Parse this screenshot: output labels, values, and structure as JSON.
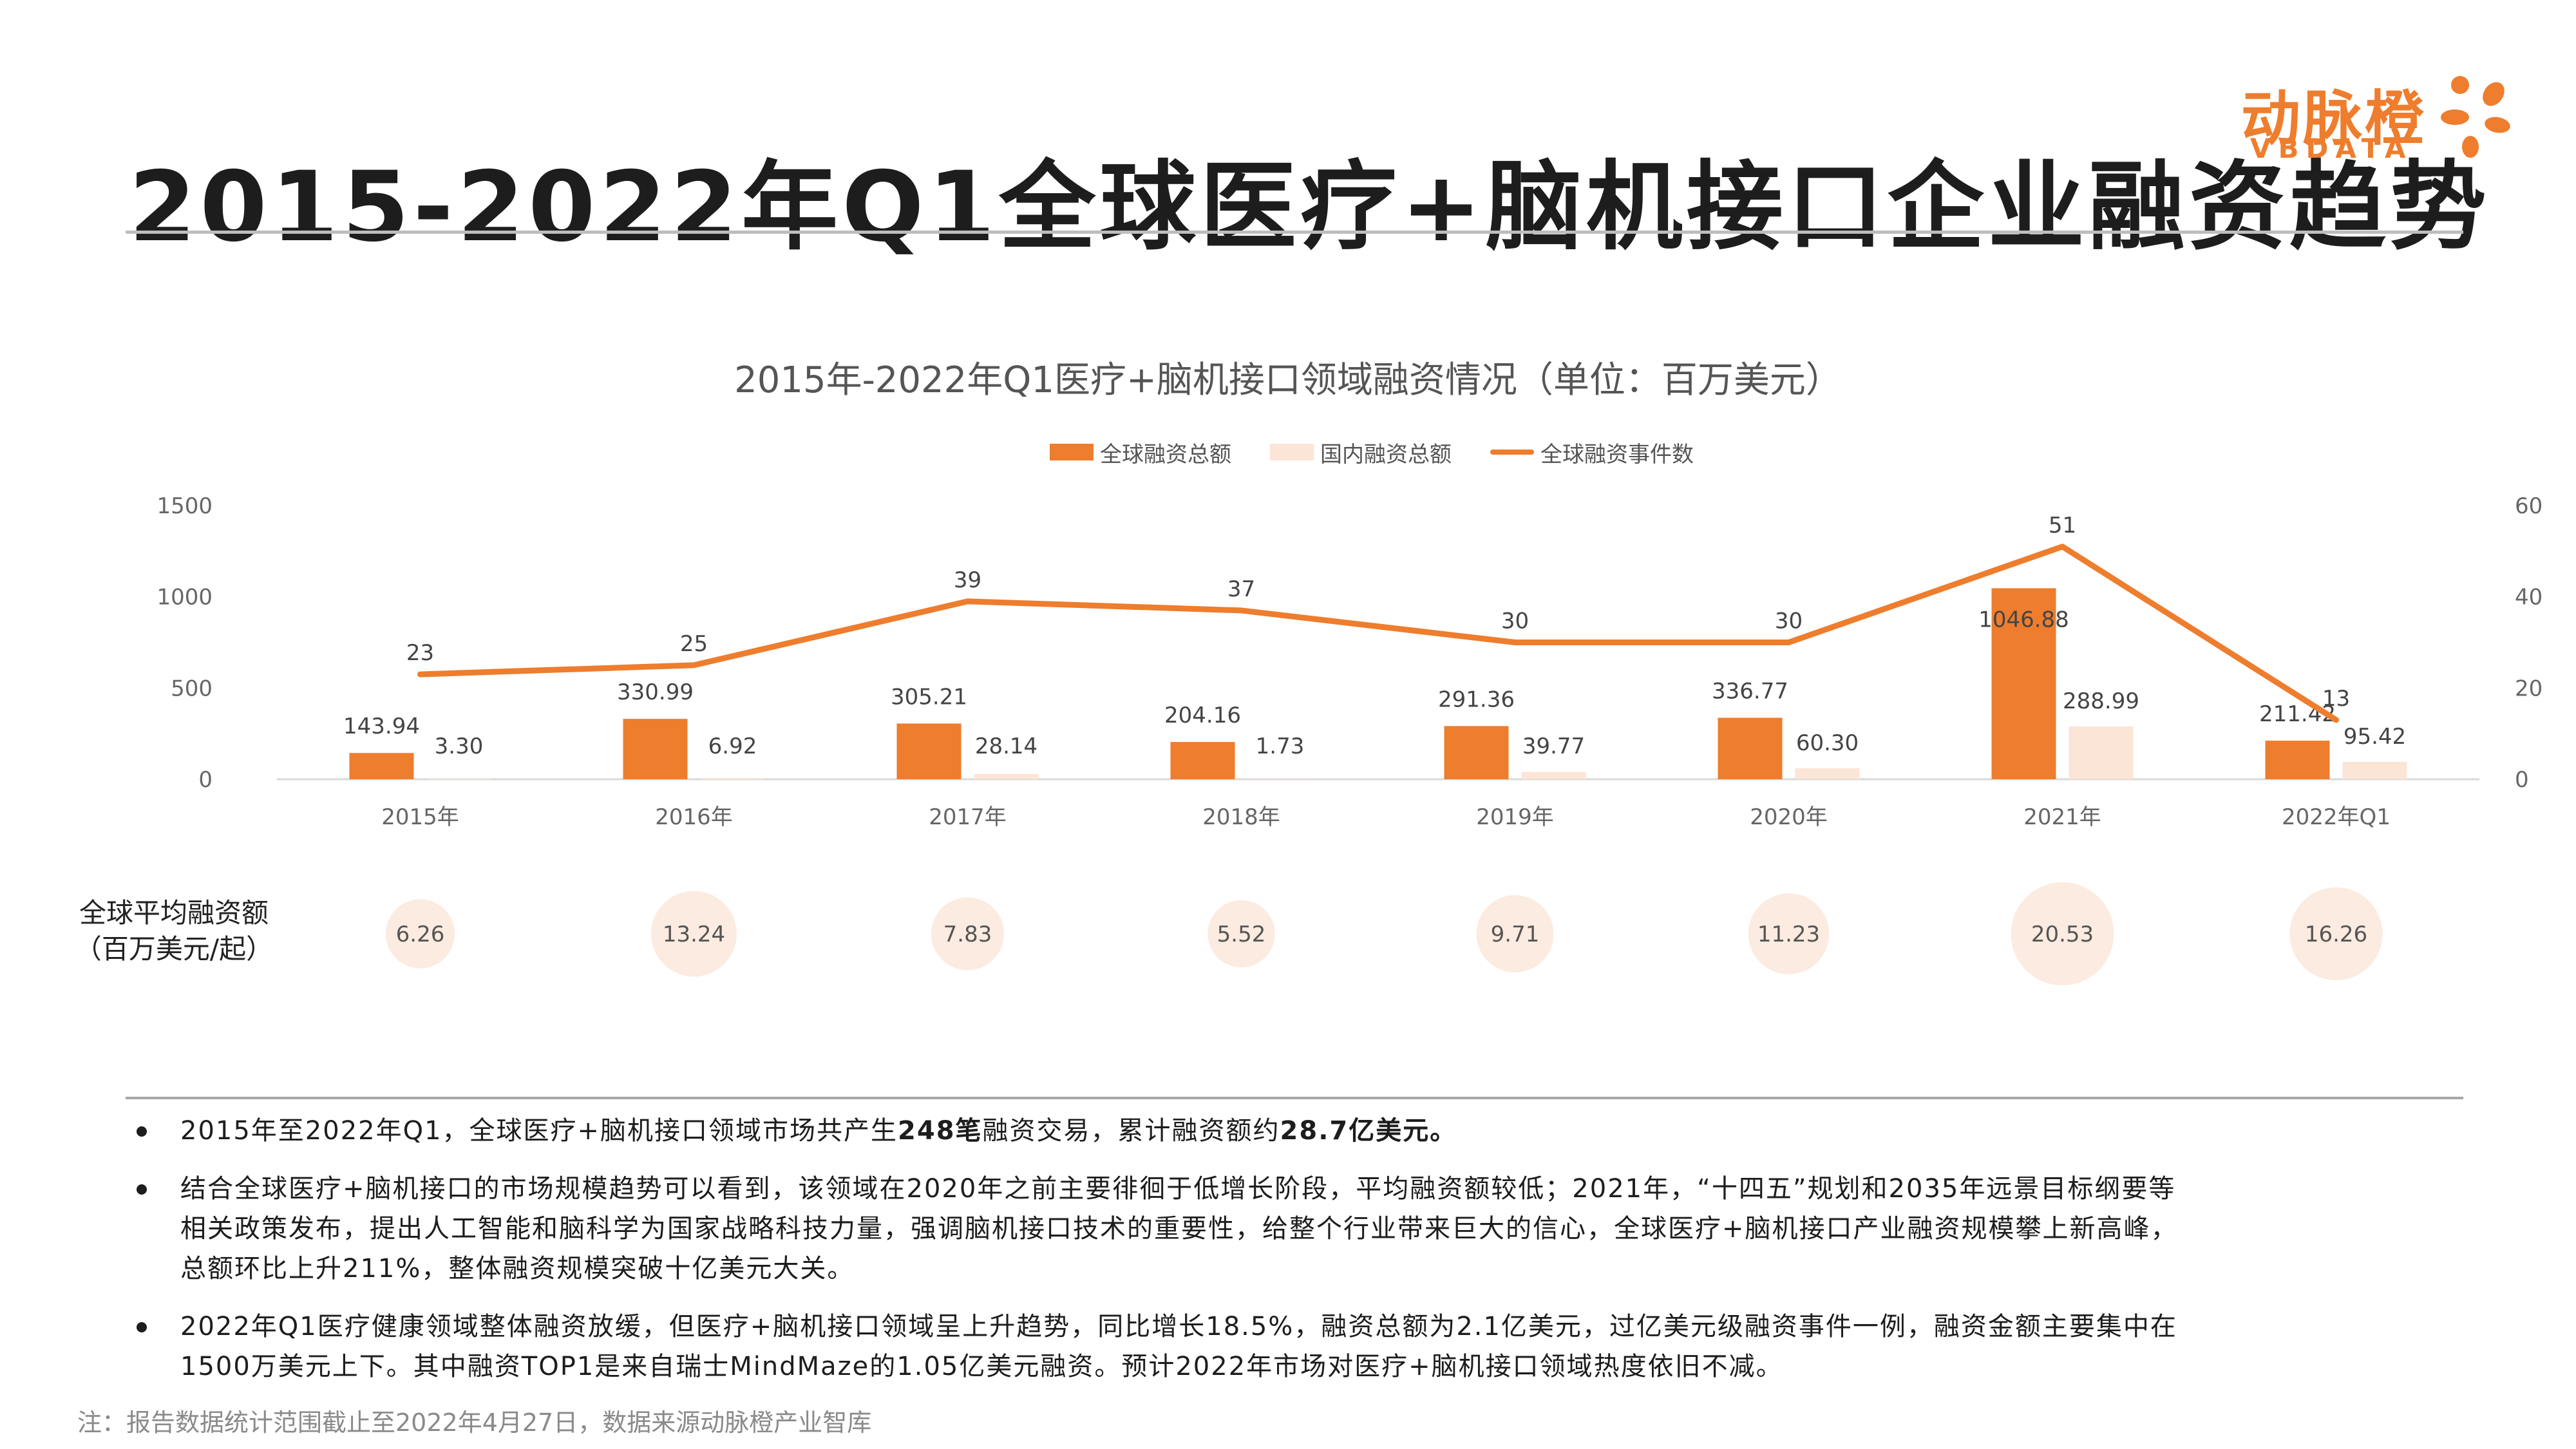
{
  "page": {
    "title": "2015-2022年Q1全球医疗+脑机接口企业融资趋势"
  },
  "logo": {
    "name": "动脉橙",
    "sub": "VBDATA",
    "accent": "#ee7d2d"
  },
  "colors": {
    "global_total": "#ee7d2d",
    "domestic_total": "#fbe5d6",
    "event_line": "#ee7d2d",
    "avg_bubble": "#fcebe0"
  },
  "chart_data": {
    "type": "bar",
    "title": "2015年-2022年Q1医疗+脑机接口领域融资情况（单位：百万美元）",
    "categories": [
      "2015年",
      "2016年",
      "2017年",
      "2018年",
      "2019年",
      "2020年",
      "2021年",
      "2022年Q1"
    ],
    "series": [
      {
        "name": "全球融资总额",
        "type": "bar",
        "axis": "left",
        "values": [
          143.94,
          330.99,
          305.21,
          204.16,
          291.36,
          336.77,
          1046.88,
          211.42
        ]
      },
      {
        "name": "国内融资总额",
        "type": "bar",
        "axis": "left",
        "values": [
          3.3,
          6.92,
          28.14,
          1.73,
          39.77,
          60.3,
          288.99,
          95.42
        ]
      },
      {
        "name": "全球融资事件数",
        "type": "line",
        "axis": "right",
        "values": [
          23,
          25,
          39,
          37,
          30,
          30,
          51,
          13
        ]
      }
    ],
    "bar_labels": {
      "global": [
        "143.94",
        "330.99",
        "305.21",
        "204.16",
        "291.36",
        "336.77",
        "1046.88",
        "211.42"
      ],
      "domestic": [
        "3.30",
        "6.92",
        "28.14",
        "1.73",
        "39.77",
        "60.30",
        "288.99",
        "95.42"
      ]
    },
    "y_left": {
      "ticks": [
        "0",
        "500",
        "1000",
        "1500"
      ],
      "range": [
        0,
        1500
      ]
    },
    "y_right": {
      "ticks": [
        "0",
        "20",
        "40",
        "60"
      ],
      "range": [
        0,
        60
      ]
    },
    "legend_position": "top-center",
    "grid": false,
    "avg": {
      "label_line1": "全球平均融资额",
      "label_line2": "（百万美元/起）",
      "values": [
        6.26,
        13.24,
        7.83,
        5.52,
        9.71,
        11.23,
        20.53,
        16.26
      ],
      "labels": [
        "6.26",
        "13.24",
        "7.83",
        "5.52",
        "9.71",
        "11.23",
        "20.53",
        "16.26"
      ]
    }
  },
  "bullets": {
    "b1": {
      "p1": "2015年至2022年Q1，全球医疗+脑机接口领域市场共产生",
      "n1": "248笔",
      "p2": "融资交易，累计融资额约",
      "n2": "28.7亿美元。"
    },
    "b2": {
      "l1": "结合全球医疗+脑机接口的市场规模趋势可以看到，该领域在2020年之前主要徘徊于低增长阶段，平均融资额较低；2021年，“十四五”规划和2035年远景目标纲要等",
      "l2": "相关政策发布，提出人工智能和脑科学为国家战略科技力量，强调脑机接口技术的重要性，给整个行业带来巨大的信心，全球医疗+脑机接口产业融资规模攀上新高峰，",
      "l3": "总额环比上升211%，整体融资规模突破十亿美元大关。"
    },
    "b3": {
      "l1": "2022年Q1医疗健康领域整体融资放缓，但医疗+脑机接口领域呈上升趋势，同比增长18.5%，融资总额为2.1亿美元，过亿美元级融资事件一例，融资金额主要集中在",
      "l2": "1500万美元上下。其中融资TOP1是来自瑞士MindMaze的1.05亿美元融资。预计2022年市场对医疗+脑机接口领域热度依旧不减。"
    }
  },
  "footnote": "注：报告数据统计范围截止至2022年4月27日，数据来源动脉橙产业智库"
}
